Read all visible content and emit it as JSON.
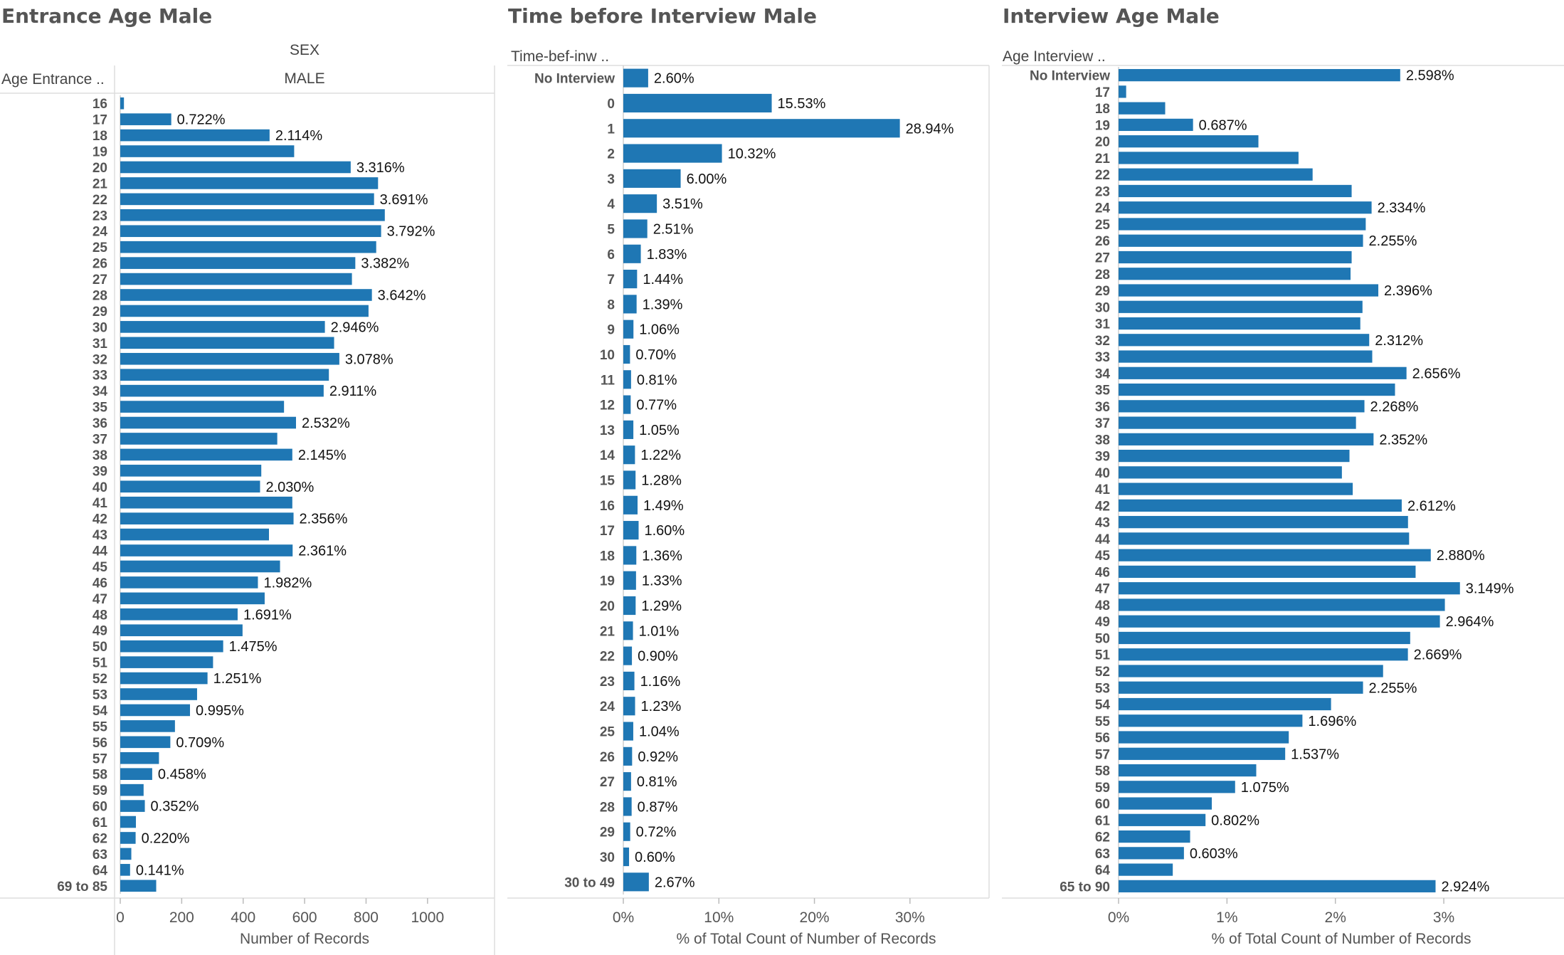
{
  "bar_color": "#1f77b4",
  "chart_data": [
    {
      "type": "bar",
      "orientation": "horizontal",
      "title": "Entrance Age Male",
      "column_header_field": "SEX",
      "column_header_value": "MALE",
      "row_header": "Age Entrance ..",
      "xlabel": "Number of Records",
      "xlim": [
        0,
        1100
      ],
      "xticks": [
        0,
        200,
        400,
        600,
        800,
        1000
      ],
      "xtick_labels": [
        "0",
        "200",
        "400",
        "600",
        "800",
        "1000"
      ],
      "categories": [
        "16",
        "17",
        "18",
        "19",
        "20",
        "21",
        "22",
        "23",
        "24",
        "25",
        "26",
        "27",
        "28",
        "29",
        "30",
        "31",
        "32",
        "33",
        "34",
        "35",
        "36",
        "37",
        "38",
        "39",
        "40",
        "41",
        "42",
        "43",
        "44",
        "45",
        "46",
        "47",
        "48",
        "49",
        "50",
        "51",
        "52",
        "53",
        "54",
        "55",
        "56",
        "57",
        "58",
        "59",
        "60",
        "61",
        "62",
        "63",
        "64",
        "69 to 85"
      ],
      "values": [
        12,
        166,
        486,
        566,
        750,
        839,
        826,
        861,
        849,
        833,
        765,
        754,
        819,
        808,
        666,
        696,
        713,
        679,
        662,
        533,
        572,
        511,
        560,
        459,
        455,
        560,
        564,
        484,
        561,
        520,
        448,
        470,
        382,
        398,
        335,
        302,
        284,
        250,
        227,
        178,
        163,
        126,
        104,
        76,
        80,
        51,
        50,
        36,
        32,
        117
      ],
      "labels": [
        "",
        "0.722%",
        "2.114%",
        "",
        "3.316%",
        "",
        "3.691%",
        "",
        "3.792%",
        "",
        "3.382%",
        "",
        "3.642%",
        "",
        "2.946%",
        "",
        "3.078%",
        "",
        "2.911%",
        "",
        "2.532%",
        "",
        "2.145%",
        "",
        "2.030%",
        "",
        "2.356%",
        "",
        "2.361%",
        "",
        "1.982%",
        "",
        "1.691%",
        "",
        "1.475%",
        "",
        "1.251%",
        "",
        "0.995%",
        "",
        "0.709%",
        "",
        "0.458%",
        "",
        "0.352%",
        "",
        "0.220%",
        "",
        "0.141%",
        ""
      ]
    },
    {
      "type": "bar",
      "orientation": "horizontal",
      "title": "Time before Interview Male",
      "row_header": "Time-bef-inw ..",
      "xlabel": "% of Total Count of Number of Records",
      "xlim": [
        0,
        35
      ],
      "xticks": [
        0,
        10,
        20,
        30
      ],
      "xtick_labels": [
        "0%",
        "10%",
        "20%",
        "30%"
      ],
      "categories": [
        "No Interview",
        "0",
        "1",
        "2",
        "3",
        "4",
        "5",
        "6",
        "7",
        "8",
        "9",
        "10",
        "11",
        "12",
        "13",
        "14",
        "15",
        "16",
        "17",
        "18",
        "19",
        "20",
        "21",
        "22",
        "23",
        "24",
        "25",
        "26",
        "27",
        "28",
        "29",
        "30",
        "30 to 49"
      ],
      "values": [
        2.6,
        15.53,
        28.94,
        10.32,
        6.0,
        3.51,
        2.51,
        1.83,
        1.44,
        1.39,
        1.06,
        0.7,
        0.81,
        0.77,
        1.05,
        1.22,
        1.28,
        1.49,
        1.6,
        1.36,
        1.33,
        1.29,
        1.01,
        0.9,
        1.16,
        1.23,
        1.04,
        0.92,
        0.81,
        0.87,
        0.72,
        0.6,
        2.67
      ],
      "labels": [
        "2.60%",
        "15.53%",
        "28.94%",
        "10.32%",
        "6.00%",
        "3.51%",
        "2.51%",
        "1.83%",
        "1.44%",
        "1.39%",
        "1.06%",
        "0.70%",
        "0.81%",
        "0.77%",
        "1.05%",
        "1.22%",
        "1.28%",
        "1.49%",
        "1.60%",
        "1.36%",
        "1.33%",
        "1.29%",
        "1.01%",
        "0.90%",
        "1.16%",
        "1.23%",
        "1.04%",
        "0.92%",
        "0.81%",
        "0.87%",
        "0.72%",
        "0.60%",
        "2.67%"
      ]
    },
    {
      "type": "bar",
      "orientation": "horizontal",
      "title": "Interview Age Male",
      "row_header": "Age Interview ..",
      "xlabel": "% of Total Count of Number of Records",
      "xlim": [
        0,
        3.4
      ],
      "xticks": [
        0,
        1,
        2,
        3
      ],
      "xtick_labels": [
        "0%",
        "1%",
        "2%",
        "3%"
      ],
      "categories": [
        "No Interview",
        "17",
        "18",
        "19",
        "20",
        "21",
        "22",
        "23",
        "24",
        "25",
        "26",
        "27",
        "28",
        "29",
        "30",
        "31",
        "32",
        "33",
        "34",
        "35",
        "36",
        "37",
        "38",
        "39",
        "40",
        "41",
        "42",
        "43",
        "44",
        "45",
        "46",
        "47",
        "48",
        "49",
        "50",
        "51",
        "52",
        "53",
        "54",
        "55",
        "56",
        "57",
        "58",
        "59",
        "60",
        "61",
        "62",
        "63",
        "64",
        "65 to 90"
      ],
      "values": [
        2.598,
        0.07,
        0.43,
        0.687,
        1.29,
        1.66,
        1.79,
        2.15,
        2.334,
        2.28,
        2.255,
        2.15,
        2.14,
        2.396,
        2.25,
        2.23,
        2.312,
        2.34,
        2.656,
        2.55,
        2.268,
        2.19,
        2.352,
        2.13,
        2.06,
        2.16,
        2.612,
        2.67,
        2.68,
        2.88,
        2.74,
        3.149,
        3.01,
        2.964,
        2.69,
        2.669,
        2.44,
        2.255,
        1.96,
        1.696,
        1.57,
        1.537,
        1.27,
        1.075,
        0.86,
        0.802,
        0.66,
        0.603,
        0.5,
        2.924
      ],
      "labels": [
        "2.598%",
        "",
        "",
        "0.687%",
        "",
        "",
        "",
        "",
        "2.334%",
        "",
        "2.255%",
        "",
        "",
        "2.396%",
        "",
        "",
        "2.312%",
        "",
        "2.656%",
        "",
        "2.268%",
        "",
        "2.352%",
        "",
        "",
        "",
        "2.612%",
        "",
        "",
        "2.880%",
        "",
        "3.149%",
        "",
        "2.964%",
        "",
        "2.669%",
        "",
        "2.255%",
        "",
        "1.696%",
        "",
        "1.537%",
        "",
        "1.075%",
        "",
        "0.802%",
        "",
        "0.603%",
        "",
        "2.924%"
      ]
    }
  ]
}
